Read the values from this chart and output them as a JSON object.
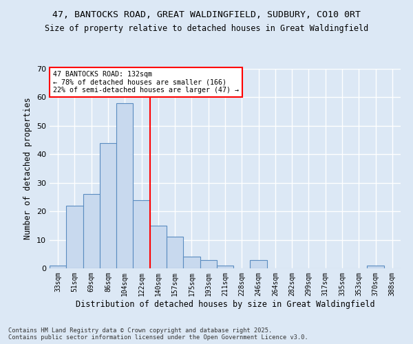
{
  "title_line1": "47, BANTOCKS ROAD, GREAT WALDINGFIELD, SUDBURY, CO10 0RT",
  "title_line2": "Size of property relative to detached houses in Great Waldingfield",
  "xlabel": "Distribution of detached houses by size in Great Waldingfield",
  "ylabel": "Number of detached properties",
  "categories": [
    "33sqm",
    "51sqm",
    "69sqm",
    "86sqm",
    "104sqm",
    "122sqm",
    "140sqm",
    "157sqm",
    "175sqm",
    "193sqm",
    "211sqm",
    "228sqm",
    "246sqm",
    "264sqm",
    "282sqm",
    "299sqm",
    "317sqm",
    "335sqm",
    "353sqm",
    "370sqm",
    "388sqm"
  ],
  "values": [
    1,
    22,
    26,
    44,
    58,
    24,
    15,
    11,
    4,
    3,
    1,
    0,
    3,
    0,
    0,
    0,
    0,
    0,
    0,
    1,
    0
  ],
  "bar_color": "#c8d9ee",
  "bar_edge_color": "#5a8cc0",
  "vline_x": 5.5,
  "vline_color": "red",
  "annotation_text": "47 BANTOCKS ROAD: 132sqm\n← 78% of detached houses are smaller (166)\n22% of semi-detached houses are larger (47) →",
  "annotation_box_color": "white",
  "annotation_box_edge": "red",
  "ylim": [
    0,
    70
  ],
  "yticks": [
    0,
    10,
    20,
    30,
    40,
    50,
    60,
    70
  ],
  "background_color": "#dce8f5",
  "grid_color": "white",
  "footer": "Contains HM Land Registry data © Crown copyright and database right 2025.\nContains public sector information licensed under the Open Government Licence v3.0."
}
